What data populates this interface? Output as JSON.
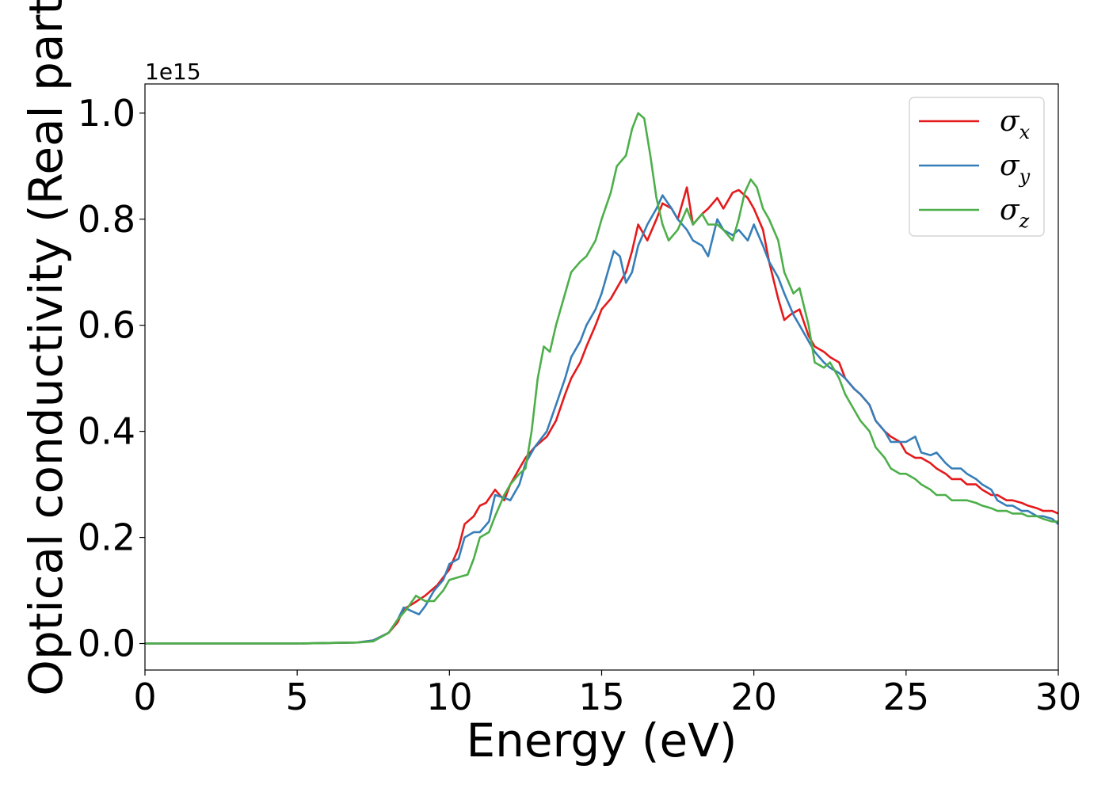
{
  "chart_data": {
    "type": "line",
    "title": "",
    "xlabel": "Energy (eV)",
    "ylabel": "Optical conductivity (Real part)",
    "y_offset_label": "1e15",
    "xlim": [
      0,
      30
    ],
    "ylim": [
      -0.05,
      1.055
    ],
    "xticks": [
      0,
      5,
      10,
      15,
      20,
      25,
      30
    ],
    "xtick_labels": [
      "0",
      "5",
      "10",
      "15",
      "20",
      "25",
      "30"
    ],
    "yticks": [
      0.0,
      0.2,
      0.4,
      0.6,
      0.8,
      1.0
    ],
    "ytick_labels": [
      "0.0",
      "0.2",
      "0.4",
      "0.6",
      "0.8",
      "1.0"
    ],
    "grid": false,
    "legend_position": "top-right",
    "series": [
      {
        "name": "σx",
        "symbol": "σ",
        "subscript": "x",
        "color": "#e41a1c",
        "x": [
          0,
          5,
          7,
          7.5,
          8,
          8.3,
          8.5,
          8.8,
          9.2,
          9.6,
          10,
          10.3,
          10.5,
          10.8,
          11,
          11.2,
          11.5,
          11.8,
          12,
          12.3,
          12.5,
          12.8,
          13.2,
          13.5,
          13.8,
          14,
          14.3,
          14.5,
          14.8,
          15,
          15.3,
          15.5,
          15.8,
          16,
          16.2,
          16.5,
          16.8,
          17,
          17.3,
          17.5,
          17.8,
          18,
          18.3,
          18.5,
          18.8,
          19,
          19.3,
          19.5,
          19.8,
          20,
          20.3,
          20.5,
          20.8,
          21,
          21.2,
          21.5,
          21.8,
          22,
          22.3,
          22.5,
          22.8,
          23,
          23.3,
          23.5,
          23.8,
          24,
          24.3,
          24.5,
          24.8,
          25,
          25.3,
          25.5,
          25.8,
          26,
          26.3,
          26.5,
          26.8,
          27,
          27.3,
          27.5,
          27.8,
          28,
          28.3,
          28.5,
          28.8,
          29,
          29.3,
          29.5,
          29.8,
          30
        ],
        "y": [
          0,
          0,
          0.002,
          0.006,
          0.02,
          0.04,
          0.065,
          0.075,
          0.09,
          0.11,
          0.14,
          0.18,
          0.225,
          0.24,
          0.26,
          0.265,
          0.29,
          0.27,
          0.3,
          0.33,
          0.35,
          0.37,
          0.39,
          0.42,
          0.47,
          0.5,
          0.53,
          0.56,
          0.6,
          0.63,
          0.65,
          0.67,
          0.7,
          0.74,
          0.79,
          0.76,
          0.8,
          0.83,
          0.82,
          0.8,
          0.86,
          0.79,
          0.81,
          0.82,
          0.84,
          0.82,
          0.85,
          0.855,
          0.84,
          0.82,
          0.78,
          0.72,
          0.65,
          0.61,
          0.62,
          0.63,
          0.58,
          0.56,
          0.55,
          0.54,
          0.53,
          0.5,
          0.48,
          0.47,
          0.45,
          0.42,
          0.4,
          0.39,
          0.38,
          0.36,
          0.35,
          0.35,
          0.34,
          0.33,
          0.32,
          0.31,
          0.31,
          0.3,
          0.3,
          0.29,
          0.28,
          0.28,
          0.27,
          0.27,
          0.265,
          0.26,
          0.255,
          0.25,
          0.25,
          0.245
        ]
      },
      {
        "name": "σy",
        "symbol": "σ",
        "subscript": "y",
        "color": "#377eb8",
        "x": [
          0,
          5,
          7,
          7.5,
          8,
          8.3,
          8.5,
          8.8,
          9,
          9.2,
          9.5,
          9.8,
          10,
          10.3,
          10.5,
          10.8,
          11,
          11.3,
          11.5,
          11.8,
          12,
          12.3,
          12.5,
          12.8,
          13.2,
          13.5,
          13.8,
          14,
          14.3,
          14.5,
          14.8,
          15,
          15.2,
          15.4,
          15.6,
          15.8,
          16,
          16.2,
          16.5,
          16.8,
          17,
          17.3,
          17.5,
          17.8,
          18,
          18.3,
          18.5,
          18.8,
          19,
          19.3,
          19.5,
          19.8,
          20,
          20.3,
          20.5,
          20.8,
          21,
          21.3,
          21.5,
          21.8,
          22,
          22.3,
          22.5,
          22.8,
          23,
          23.3,
          23.5,
          23.8,
          24,
          24.3,
          24.5,
          24.8,
          25,
          25.3,
          25.5,
          25.8,
          26,
          26.3,
          26.5,
          26.8,
          27,
          27.3,
          27.5,
          27.8,
          28,
          28.3,
          28.5,
          28.8,
          29,
          29.3,
          29.5,
          29.8,
          30
        ],
        "y": [
          0,
          0,
          0.002,
          0.006,
          0.02,
          0.045,
          0.068,
          0.06,
          0.055,
          0.07,
          0.1,
          0.12,
          0.15,
          0.16,
          0.2,
          0.21,
          0.21,
          0.23,
          0.28,
          0.275,
          0.27,
          0.3,
          0.34,
          0.37,
          0.4,
          0.45,
          0.5,
          0.54,
          0.57,
          0.6,
          0.63,
          0.66,
          0.7,
          0.74,
          0.73,
          0.68,
          0.7,
          0.75,
          0.79,
          0.82,
          0.845,
          0.82,
          0.8,
          0.78,
          0.76,
          0.75,
          0.73,
          0.8,
          0.78,
          0.77,
          0.78,
          0.76,
          0.79,
          0.75,
          0.72,
          0.69,
          0.66,
          0.62,
          0.6,
          0.57,
          0.55,
          0.53,
          0.52,
          0.51,
          0.5,
          0.48,
          0.47,
          0.45,
          0.42,
          0.4,
          0.38,
          0.38,
          0.38,
          0.39,
          0.36,
          0.355,
          0.36,
          0.34,
          0.33,
          0.33,
          0.32,
          0.31,
          0.3,
          0.29,
          0.27,
          0.26,
          0.26,
          0.25,
          0.25,
          0.24,
          0.24,
          0.235,
          0.225
        ]
      },
      {
        "name": "σz",
        "symbol": "σ",
        "subscript": "z",
        "color": "#4daf4a",
        "x": [
          0,
          5,
          7,
          7.5,
          8,
          8.3,
          8.6,
          8.9,
          9.2,
          9.5,
          9.8,
          10,
          10.3,
          10.6,
          10.8,
          11,
          11.3,
          11.5,
          11.8,
          12,
          12.3,
          12.5,
          12.7,
          12.9,
          13.1,
          13.3,
          13.5,
          13.8,
          14,
          14.3,
          14.5,
          14.8,
          15,
          15.3,
          15.5,
          15.8,
          16,
          16.2,
          16.4,
          16.6,
          16.8,
          17,
          17.2,
          17.5,
          17.8,
          18,
          18.3,
          18.5,
          18.8,
          19,
          19.3,
          19.5,
          19.7,
          19.9,
          20.1,
          20.3,
          20.5,
          20.8,
          21,
          21.3,
          21.5,
          21.8,
          22,
          22.3,
          22.5,
          22.8,
          23,
          23.3,
          23.5,
          23.8,
          24,
          24.3,
          24.5,
          24.8,
          25,
          25.3,
          25.5,
          25.8,
          26,
          26.3,
          26.5,
          26.8,
          27,
          27.3,
          27.5,
          27.8,
          28,
          28.3,
          28.5,
          28.8,
          29,
          29.3,
          29.5,
          29.8,
          30
        ],
        "y": [
          0,
          0,
          0.002,
          0.004,
          0.02,
          0.045,
          0.065,
          0.09,
          0.08,
          0.08,
          0.1,
          0.12,
          0.125,
          0.13,
          0.16,
          0.2,
          0.21,
          0.24,
          0.28,
          0.3,
          0.32,
          0.33,
          0.4,
          0.5,
          0.56,
          0.55,
          0.6,
          0.66,
          0.7,
          0.72,
          0.73,
          0.76,
          0.8,
          0.85,
          0.9,
          0.92,
          0.97,
          1.0,
          0.99,
          0.92,
          0.84,
          0.79,
          0.76,
          0.78,
          0.82,
          0.79,
          0.81,
          0.79,
          0.79,
          0.78,
          0.76,
          0.8,
          0.85,
          0.875,
          0.86,
          0.82,
          0.8,
          0.76,
          0.7,
          0.66,
          0.67,
          0.6,
          0.53,
          0.52,
          0.53,
          0.5,
          0.47,
          0.44,
          0.42,
          0.4,
          0.37,
          0.35,
          0.33,
          0.32,
          0.32,
          0.31,
          0.3,
          0.29,
          0.28,
          0.28,
          0.27,
          0.27,
          0.27,
          0.265,
          0.26,
          0.255,
          0.25,
          0.25,
          0.245,
          0.245,
          0.24,
          0.24,
          0.235,
          0.23,
          0.23
        ]
      }
    ]
  }
}
